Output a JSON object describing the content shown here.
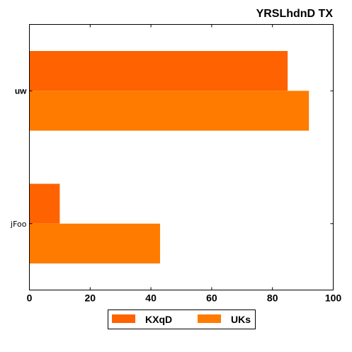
{
  "chart_data": {
    "type": "bar",
    "orientation": "horizontal",
    "title": "YRSLhdnD TX",
    "categories": [
      "uw",
      "jFoo"
    ],
    "series": [
      {
        "name": "KXqD",
        "values": [
          85,
          10
        ],
        "color": "#ff6200"
      },
      {
        "name": "UKs",
        "values": [
          92,
          43
        ],
        "color": "#ff7b00"
      }
    ],
    "xlim": [
      0,
      100
    ],
    "xticks": [
      "0",
      "20",
      "40",
      "60",
      "80",
      "100"
    ],
    "grid": false,
    "legend_position": "bottom-center"
  }
}
